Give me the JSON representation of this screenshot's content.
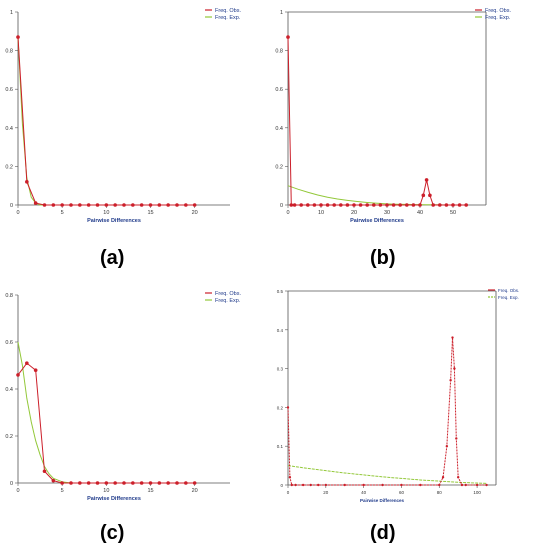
{
  "colors": {
    "observed": "#cc1f2a",
    "expected": "#93c83a",
    "axis": "#555555"
  },
  "labels": [
    "(a)",
    "(b)",
    "(c)",
    "(d)"
  ],
  "chart_data": [
    {
      "type": "line",
      "label": "(a)",
      "xlabel": "Pairwise Differences",
      "ylabel": "",
      "xlim": [
        0,
        24
      ],
      "ylim": [
        0,
        1
      ],
      "xticks": [
        0,
        5,
        10,
        15,
        20
      ],
      "yticks": [
        0,
        0.2,
        0.4,
        0.6,
        0.8,
        1
      ],
      "ytick_labels": [
        "0",
        "0.2",
        "0.4",
        "0.6",
        "0.8",
        "1"
      ],
      "legend": [
        "Freq. Obs.",
        "Freq. Exp."
      ],
      "legend_position": "top-right",
      "series": [
        {
          "name": "Freq. Obs.",
          "x": [
            0,
            1,
            2,
            3,
            4,
            5,
            6,
            7,
            8,
            9,
            10,
            11,
            12,
            13,
            14,
            15,
            16,
            17,
            18,
            19,
            20
          ],
          "y": [
            0.87,
            0.12,
            0.01,
            0,
            0,
            0,
            0,
            0,
            0,
            0,
            0,
            0,
            0,
            0,
            0,
            0,
            0,
            0,
            0,
            0,
            0
          ]
        },
        {
          "name": "Freq. Exp.",
          "x": [
            0,
            0.5,
            1,
            1.5,
            2,
            2.5,
            3
          ],
          "y": [
            0.87,
            0.42,
            0.14,
            0.04,
            0.01,
            0,
            0
          ]
        }
      ]
    },
    {
      "type": "line",
      "label": "(b)",
      "xlabel": "Pairwise Differences",
      "ylabel": "",
      "xlim": [
        0,
        60
      ],
      "ylim": [
        0,
        1
      ],
      "xticks": [
        0,
        10,
        20,
        30,
        40,
        50
      ],
      "yticks": [
        0,
        0.2,
        0.4,
        0.6,
        0.8,
        1
      ],
      "ytick_labels": [
        "0",
        "0.2",
        "0.4",
        "0.6",
        "0.8",
        "1"
      ],
      "legend": [
        "Freq. Obs.",
        "Freq. Exp."
      ],
      "legend_position": "top-right",
      "series": [
        {
          "name": "Freq. Obs.",
          "x": [
            0,
            1,
            2,
            4,
            6,
            8,
            10,
            12,
            14,
            16,
            18,
            20,
            22,
            24,
            26,
            28,
            30,
            32,
            34,
            36,
            38,
            40,
            41,
            42,
            43,
            44,
            46,
            48,
            50,
            52,
            54
          ],
          "y": [
            0.87,
            0,
            0,
            0,
            0,
            0,
            0,
            0,
            0,
            0,
            0,
            0,
            0,
            0,
            0,
            0,
            0,
            0,
            0,
            0,
            0,
            0,
            0.05,
            0.13,
            0.05,
            0,
            0,
            0,
            0,
            0,
            0
          ]
        },
        {
          "name": "Freq. Exp.",
          "x": [
            0,
            3,
            6,
            9,
            12,
            15,
            18,
            21,
            24,
            27,
            30,
            33,
            36,
            39,
            42,
            45,
            48,
            51,
            54
          ],
          "y": [
            0.1,
            0.082,
            0.066,
            0.052,
            0.04,
            0.031,
            0.024,
            0.018,
            0.013,
            0.009,
            0.006,
            0.004,
            0.003,
            0.002,
            0.001,
            0.001,
            0,
            0,
            0
          ]
        }
      ]
    },
    {
      "type": "line",
      "label": "(c)",
      "xlabel": "Pairwise Differences",
      "ylabel": "",
      "xlim": [
        0,
        24
      ],
      "ylim": [
        0,
        0.8
      ],
      "xticks": [
        0,
        5,
        10,
        15,
        20
      ],
      "yticks": [
        0,
        0.2,
        0.4,
        0.6,
        0.8
      ],
      "ytick_labels": [
        "0",
        "0.2",
        "0.4",
        "0.6",
        "0.8"
      ],
      "legend": [
        "Freq. Obs.",
        "Freq. Exp."
      ],
      "legend_position": "top-right",
      "series": [
        {
          "name": "Freq. Obs.",
          "x": [
            0,
            1,
            2,
            3,
            4,
            5,
            6,
            7,
            8,
            9,
            10,
            11,
            12,
            13,
            14,
            15,
            16,
            17,
            18,
            19,
            20
          ],
          "y": [
            0.46,
            0.51,
            0.48,
            0.05,
            0.01,
            0,
            0,
            0,
            0,
            0,
            0,
            0,
            0,
            0,
            0,
            0,
            0,
            0,
            0,
            0,
            0
          ]
        },
        {
          "name": "Freq. Exp.",
          "x": [
            0,
            0.5,
            1,
            1.5,
            2,
            2.5,
            3,
            3.5,
            4,
            5,
            6
          ],
          "y": [
            0.6,
            0.5,
            0.36,
            0.26,
            0.18,
            0.12,
            0.07,
            0.04,
            0.02,
            0.005,
            0
          ]
        }
      ]
    },
    {
      "type": "line",
      "label": "(d)",
      "xlabel": "Pairwise Differences",
      "ylabel": "",
      "xlim": [
        0,
        110
      ],
      "ylim": [
        0,
        0.5
      ],
      "xticks": [
        0,
        20,
        40,
        60,
        80,
        100
      ],
      "yticks": [
        0,
        0.1,
        0.2,
        0.3,
        0.4,
        0.5
      ],
      "ytick_labels": [
        "0",
        "0.1",
        "0.2",
        "0.3",
        "0.4",
        "0.5"
      ],
      "legend": [
        "Freq. Obs.",
        "Freq. Exp."
      ],
      "legend_position": "top-right",
      "series": [
        {
          "name": "Freq. Obs.",
          "x": [
            0,
            1,
            2,
            4,
            8,
            12,
            16,
            20,
            30,
            40,
            50,
            60,
            70,
            80,
            82,
            84,
            86,
            87,
            88,
            89,
            90,
            92,
            94,
            100,
            105
          ],
          "y": [
            0.2,
            0.02,
            0,
            0,
            0,
            0,
            0,
            0,
            0,
            0,
            0,
            0,
            0,
            0,
            0.02,
            0.1,
            0.27,
            0.38,
            0.3,
            0.12,
            0.02,
            0,
            0,
            0,
            0
          ]
        },
        {
          "name": "Freq. Exp.",
          "x": [
            0,
            10,
            20,
            30,
            40,
            50,
            60,
            70,
            80,
            90,
            100,
            105
          ],
          "y": [
            0.05,
            0.043,
            0.037,
            0.031,
            0.026,
            0.021,
            0.017,
            0.013,
            0.01,
            0.007,
            0.005,
            0.004
          ]
        }
      ]
    }
  ]
}
